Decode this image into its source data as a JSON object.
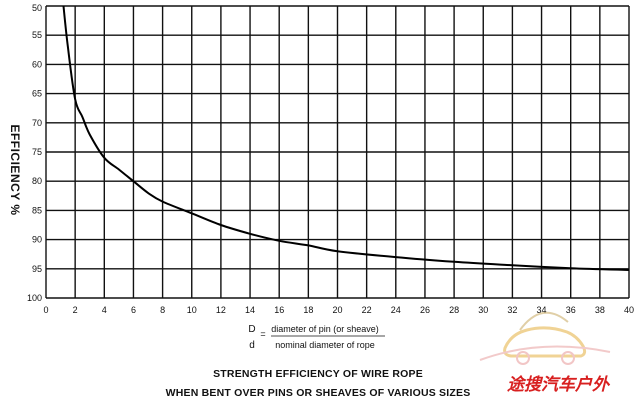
{
  "chart_data": {
    "type": "line",
    "title": "STRENGTH EFFICIENCY OF WIRE ROPE",
    "subtitle": "WHEN BENT OVER PINS OR SHEAVES OF VARIOUS SIZES",
    "ylabel": "EFFICIENCY %",
    "xlabel": {
      "numerator_symbol": "D",
      "numerator_text": "diameter of pin (or sheave)",
      "denominator_symbol": "d",
      "denominator_text": "nominal diameter of rope",
      "equals": "="
    },
    "xlim": [
      0,
      40
    ],
    "ylim": [
      50,
      100
    ],
    "y_inverted": true,
    "grid": true,
    "x_ticks": [
      0,
      2,
      4,
      6,
      8,
      10,
      12,
      14,
      16,
      18,
      20,
      22,
      24,
      26,
      28,
      30,
      32,
      34,
      36,
      38,
      40
    ],
    "y_ticks": [
      50,
      55,
      60,
      65,
      70,
      75,
      80,
      85,
      90,
      95,
      100
    ],
    "series": [
      {
        "x": [
          1.2,
          1.5,
          2,
          2.5,
          3,
          4,
          5,
          6,
          7,
          8,
          10,
          12,
          14,
          16,
          18,
          20,
          24,
          28,
          32,
          36,
          40
        ],
        "y": [
          50,
          57,
          66,
          69,
          72,
          76,
          78,
          80,
          82,
          83.5,
          85.5,
          87.5,
          89,
          90.2,
          91,
          92,
          93,
          93.8,
          94.4,
          94.9,
          95.2
        ]
      }
    ]
  },
  "watermark": "途搜汽车户外"
}
